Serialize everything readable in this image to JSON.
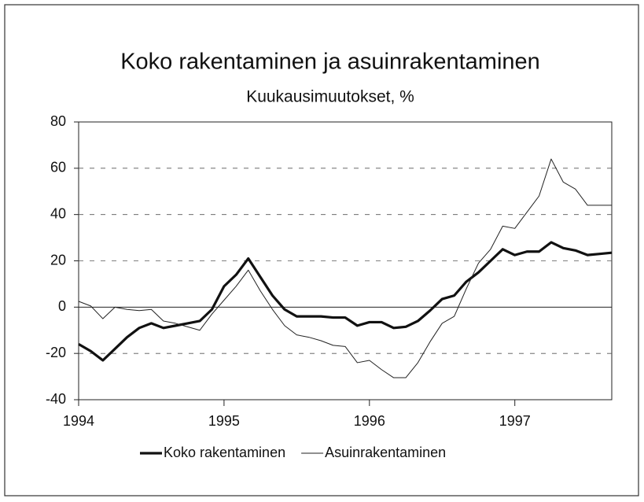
{
  "chart_data": {
    "type": "line",
    "title": "Koko rakentaminen ja asuinrakentaminen",
    "subtitle": "Kuukausimuutokset, %",
    "x": [
      1994,
      1994.0833,
      1994.1667,
      1994.25,
      1994.3333,
      1994.4167,
      1994.5,
      1994.5833,
      1994.6667,
      1994.75,
      1994.8333,
      1994.9167,
      1995,
      1995.0833,
      1995.1667,
      1995.25,
      1995.3333,
      1995.4167,
      1995.5,
      1995.5833,
      1995.6667,
      1995.75,
      1995.8333,
      1995.9167,
      1996,
      1996.0833,
      1996.1667,
      1996.25,
      1996.3333,
      1996.4167,
      1996.5,
      1996.5833,
      1996.6667,
      1996.75,
      1996.8333,
      1996.9167,
      1997,
      1997.0833,
      1997.1667,
      1997.25,
      1997.3333,
      1997.4167,
      1997.5,
      1997.5833,
      1997.6667
    ],
    "series": [
      {
        "name": "Koko rakentaminen",
        "color": "#111111",
        "width": 3.2,
        "values": [
          -16,
          -19,
          -23,
          -18,
          -13,
          -9,
          -7,
          -9,
          -8,
          -7,
          -6,
          -1,
          9,
          14,
          21,
          13,
          5,
          -1,
          -4,
          -4,
          -4,
          -4.5,
          -4.5,
          -8,
          -6.5,
          -6.5,
          -9,
          -8.5,
          -6,
          -1.5,
          3.5,
          5,
          11,
          15,
          20,
          25,
          22.5,
          24,
          24,
          28,
          25.5,
          24.5,
          22.5,
          23,
          23.5
        ]
      },
      {
        "name": "Asuinrakentaminen",
        "color": "#222222",
        "width": 1,
        "values": [
          2.5,
          0.5,
          -5,
          0,
          -1,
          -1.5,
          -1,
          -6,
          -7,
          -8.5,
          -10,
          -3,
          3,
          9,
          16,
          7,
          -1,
          -8,
          -12,
          -13,
          -14.5,
          -16.5,
          -17,
          -24,
          -23,
          -27,
          -30.5,
          -30.5,
          -24,
          -15,
          -7,
          -4,
          8,
          19,
          25,
          35,
          34,
          41,
          48,
          64,
          54,
          51,
          44,
          44,
          44
        ]
      }
    ],
    "xlim": [
      1994,
      1997.6667
    ],
    "xticks": [
      1994,
      1995,
      1996,
      1997
    ],
    "ylim": [
      -40,
      80
    ],
    "yticks": [
      -40,
      -20,
      0,
      20,
      40,
      60,
      80
    ],
    "grid": true,
    "legend": "bottom"
  }
}
